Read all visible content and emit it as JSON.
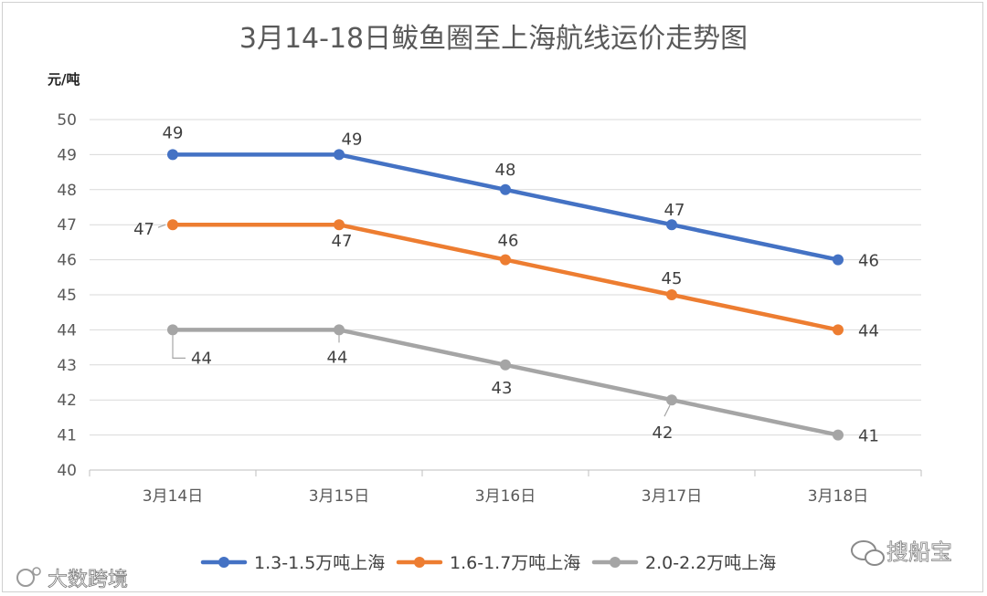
{
  "chart_data": {
    "type": "line",
    "title": "3月14-18日鲅鱼圈至上海航线运价走势图",
    "ylabel": "元/吨",
    "xlabel": "",
    "categories": [
      "3月14日",
      "3月15日",
      "3月16日",
      "3月17日",
      "3月18日"
    ],
    "ylim": [
      40,
      50
    ],
    "yticks": [
      40,
      41,
      42,
      43,
      44,
      45,
      46,
      47,
      48,
      49,
      50
    ],
    "grid": true,
    "legend_position": "bottom",
    "series": [
      {
        "name": "1.3-1.5万吨上海",
        "color": "#4472C4",
        "values": [
          49,
          49,
          48,
          47,
          46
        ]
      },
      {
        "name": "1.6-1.7万吨上海",
        "color": "#ED7D31",
        "values": [
          47,
          47,
          46,
          45,
          44
        ]
      },
      {
        "name": "2.0-2.2万吨上海",
        "color": "#A5A5A5",
        "values": [
          44,
          44,
          43,
          42,
          41
        ]
      }
    ]
  },
  "watermarks": {
    "left": "大数跨境",
    "right": "搜船宝"
  }
}
